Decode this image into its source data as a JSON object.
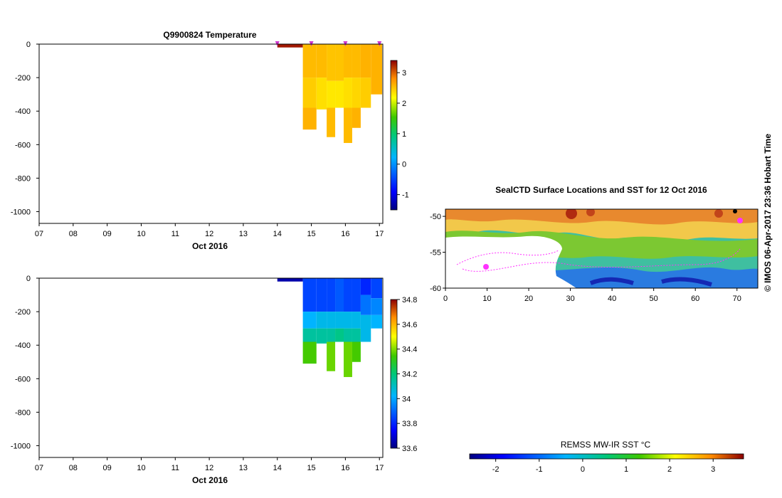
{
  "chart_data": [
    {
      "type": "heatmap",
      "title": "Q9900824  Temperature",
      "xlabel": "Oct 2016",
      "ylabel": "",
      "x_ticks": [
        "07",
        "08",
        "09",
        "10",
        "11",
        "12",
        "13",
        "14",
        "15",
        "16",
        "17"
      ],
      "xlim": [
        7,
        17.1
      ],
      "y_ticks": [
        0,
        -200,
        -400,
        -600,
        -800,
        -1000
      ],
      "ylim": [
        -1070,
        0
      ],
      "colorbar": {
        "ticks": [
          3,
          2,
          1,
          0,
          -1
        ],
        "range": [
          -1.5,
          3.4
        ]
      },
      "profile_markers": [
        14.0,
        15.0,
        16.0,
        17.0
      ],
      "profiles": [
        {
          "x0": 14.0,
          "x1": 14.75,
          "cells": [
            {
              "z0": 0,
              "z1": -20,
              "v": 3.3
            }
          ]
        },
        {
          "x0": 14.75,
          "x1": 15.15,
          "cells": [
            {
              "z0": 0,
              "z1": -200,
              "v": 2.55
            },
            {
              "z0": -200,
              "z1": -380,
              "v": 2.45
            },
            {
              "z0": -380,
              "z1": -510,
              "v": 2.6
            }
          ]
        },
        {
          "x0": 15.15,
          "x1": 15.45,
          "cells": [
            {
              "z0": 0,
              "z1": -200,
              "v": 2.55
            },
            {
              "z0": -200,
              "z1": -390,
              "v": 2.35
            }
          ]
        },
        {
          "x0": 15.45,
          "x1": 15.7,
          "cells": [
            {
              "z0": 0,
              "z1": -220,
              "v": 2.5
            },
            {
              "z0": -220,
              "z1": -380,
              "v": 2.3
            },
            {
              "z0": -380,
              "z1": -555,
              "v": 2.55
            }
          ]
        },
        {
          "x0": 15.7,
          "x1": 15.95,
          "cells": [
            {
              "z0": 0,
              "z1": -220,
              "v": 2.5
            },
            {
              "z0": -220,
              "z1": -380,
              "v": 2.3
            }
          ]
        },
        {
          "x0": 15.95,
          "x1": 16.2,
          "cells": [
            {
              "z0": 0,
              "z1": -200,
              "v": 2.55
            },
            {
              "z0": -200,
              "z1": -380,
              "v": 2.35
            },
            {
              "z0": -380,
              "z1": -590,
              "v": 2.55
            }
          ]
        },
        {
          "x0": 16.2,
          "x1": 16.45,
          "cells": [
            {
              "z0": 0,
              "z1": -200,
              "v": 2.55
            },
            {
              "z0": -200,
              "z1": -380,
              "v": 2.4
            },
            {
              "z0": -380,
              "z1": -500,
              "v": 2.6
            }
          ]
        },
        {
          "x0": 16.45,
          "x1": 16.75,
          "cells": [
            {
              "z0": 0,
              "z1": -200,
              "v": 2.6
            },
            {
              "z0": -200,
              "z1": -380,
              "v": 2.45
            }
          ]
        },
        {
          "x0": 16.75,
          "x1": 17.08,
          "cells": [
            {
              "z0": 0,
              "z1": -300,
              "v": 2.6
            }
          ]
        }
      ]
    },
    {
      "type": "heatmap",
      "title": "",
      "xlabel": "Oct 2016",
      "ylabel": "",
      "x_ticks": [
        "07",
        "08",
        "09",
        "10",
        "11",
        "12",
        "13",
        "14",
        "15",
        "16",
        "17"
      ],
      "xlim": [
        7,
        17.1
      ],
      "y_ticks": [
        0,
        -200,
        -400,
        -600,
        -800,
        -1000
      ],
      "ylim": [
        -1070,
        0
      ],
      "colorbar": {
        "ticks": [
          34.8,
          34.6,
          34.4,
          34.2,
          34,
          33.8,
          33.6
        ],
        "range": [
          33.6,
          34.8
        ]
      },
      "profiles": [
        {
          "x0": 14.0,
          "x1": 14.75,
          "cells": [
            {
              "z0": 0,
              "z1": -20,
              "v": 33.65
            }
          ]
        },
        {
          "x0": 14.75,
          "x1": 15.15,
          "cells": [
            {
              "z0": 0,
              "z1": -200,
              "v": 33.85
            },
            {
              "z0": -200,
              "z1": -300,
              "v": 34.02
            },
            {
              "z0": -300,
              "z1": -380,
              "v": 34.15
            },
            {
              "z0": -380,
              "z1": -510,
              "v": 34.35
            }
          ]
        },
        {
          "x0": 15.15,
          "x1": 15.45,
          "cells": [
            {
              "z0": 0,
              "z1": -200,
              "v": 33.85
            },
            {
              "z0": -200,
              "z1": -300,
              "v": 34.05
            },
            {
              "z0": -300,
              "z1": -390,
              "v": 34.15
            }
          ]
        },
        {
          "x0": 15.45,
          "x1": 15.7,
          "cells": [
            {
              "z0": 0,
              "z1": -200,
              "v": 33.85
            },
            {
              "z0": -200,
              "z1": -300,
              "v": 34.05
            },
            {
              "z0": -300,
              "z1": -380,
              "v": 34.15
            },
            {
              "z0": -380,
              "z1": -555,
              "v": 34.38
            }
          ]
        },
        {
          "x0": 15.7,
          "x1": 15.95,
          "cells": [
            {
              "z0": 0,
              "z1": -200,
              "v": 33.88
            },
            {
              "z0": -200,
              "z1": -300,
              "v": 34.05
            },
            {
              "z0": -300,
              "z1": -380,
              "v": 34.18
            }
          ]
        },
        {
          "x0": 15.95,
          "x1": 16.2,
          "cells": [
            {
              "z0": 0,
              "z1": -200,
              "v": 33.85
            },
            {
              "z0": -200,
              "z1": -300,
              "v": 34.05
            },
            {
              "z0": -300,
              "z1": -380,
              "v": 34.15
            },
            {
              "z0": -380,
              "z1": -590,
              "v": 34.38
            }
          ]
        },
        {
          "x0": 16.2,
          "x1": 16.45,
          "cells": [
            {
              "z0": 0,
              "z1": -200,
              "v": 33.85
            },
            {
              "z0": -200,
              "z1": -300,
              "v": 34.05
            },
            {
              "z0": -300,
              "z1": -380,
              "v": 34.15
            },
            {
              "z0": -380,
              "z1": -500,
              "v": 34.35
            }
          ]
        },
        {
          "x0": 16.45,
          "x1": 16.75,
          "cells": [
            {
              "z0": 0,
              "z1": -100,
              "v": 33.8
            },
            {
              "z0": -100,
              "z1": -220,
              "v": 33.92
            },
            {
              "z0": -220,
              "z1": -380,
              "v": 34.05
            }
          ]
        },
        {
          "x0": 16.75,
          "x1": 17.08,
          "cells": [
            {
              "z0": 0,
              "z1": -120,
              "v": 33.85
            },
            {
              "z0": -120,
              "z1": -220,
              "v": 33.95
            },
            {
              "z0": -220,
              "z1": -300,
              "v": 34.02
            }
          ]
        }
      ]
    },
    {
      "type": "heatmap",
      "title": "SealCTD Surface Locations and SST for 12 Oct 2016",
      "xlabel": "",
      "ylabel": "",
      "x_ticks": [
        0,
        10,
        20,
        30,
        40,
        50,
        60,
        70
      ],
      "xlim": [
        0,
        75
      ],
      "y_ticks": [
        -50,
        -55,
        -60
      ],
      "ylim": [
        -60,
        -49
      ],
      "colorbar": {
        "label": "REMSS MW-IR SST °C",
        "ticks": [
          -2,
          -1,
          0,
          1,
          2,
          3
        ],
        "range": [
          -2.6,
          3.7
        ]
      },
      "track_color": "#ff33ff"
    }
  ],
  "side_label": "© IMOS 06-Apr-2017 23:36 Hobart Time"
}
